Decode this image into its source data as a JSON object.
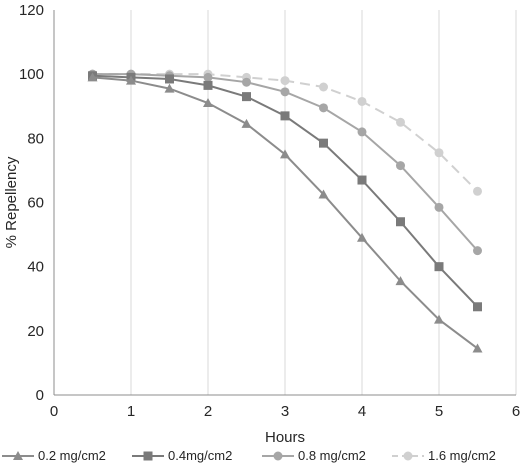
{
  "chart_data": {
    "type": "line",
    "title": "",
    "xlabel": "Hours",
    "ylabel": "% Repellency",
    "xlim": [
      0,
      6
    ],
    "ylim": [
      0,
      120
    ],
    "xticks": [
      0,
      1,
      2,
      3,
      4,
      5,
      6
    ],
    "yticks": [
      0,
      20,
      40,
      60,
      80,
      100,
      120
    ],
    "grid": "vertical",
    "legend_position": "bottom",
    "x": [
      0.5,
      1,
      1.5,
      2,
      2.5,
      3,
      3.5,
      4,
      4.5,
      5,
      5.5
    ],
    "series": [
      {
        "name": "0.2 mg/cm2",
        "marker": "triangle",
        "color": "#8c8c8c",
        "dashed": false,
        "values": [
          99,
          98,
          95.5,
          91,
          84.5,
          75,
          62.5,
          49,
          35.5,
          23.5,
          14.5
        ]
      },
      {
        "name": "0.4mg/cm2",
        "marker": "square",
        "color": "#7a7a7a",
        "dashed": false,
        "values": [
          99.5,
          99,
          98.5,
          96.5,
          93,
          87,
          78.5,
          67,
          54,
          40,
          27.5
        ]
      },
      {
        "name": "0.8 mg/cm2",
        "marker": "circle",
        "color": "#a6a6a6",
        "dashed": false,
        "values": [
          100,
          100,
          99.5,
          99,
          97.5,
          94.5,
          89.5,
          82,
          71.5,
          58.5,
          45
        ]
      },
      {
        "name": "1.6 mg/cm2",
        "marker": "circle",
        "color": "#d0d0d0",
        "dashed": true,
        "values": [
          100,
          100,
          100,
          100,
          99,
          98,
          96,
          91.5,
          85,
          75.5,
          63.5
        ]
      }
    ]
  }
}
